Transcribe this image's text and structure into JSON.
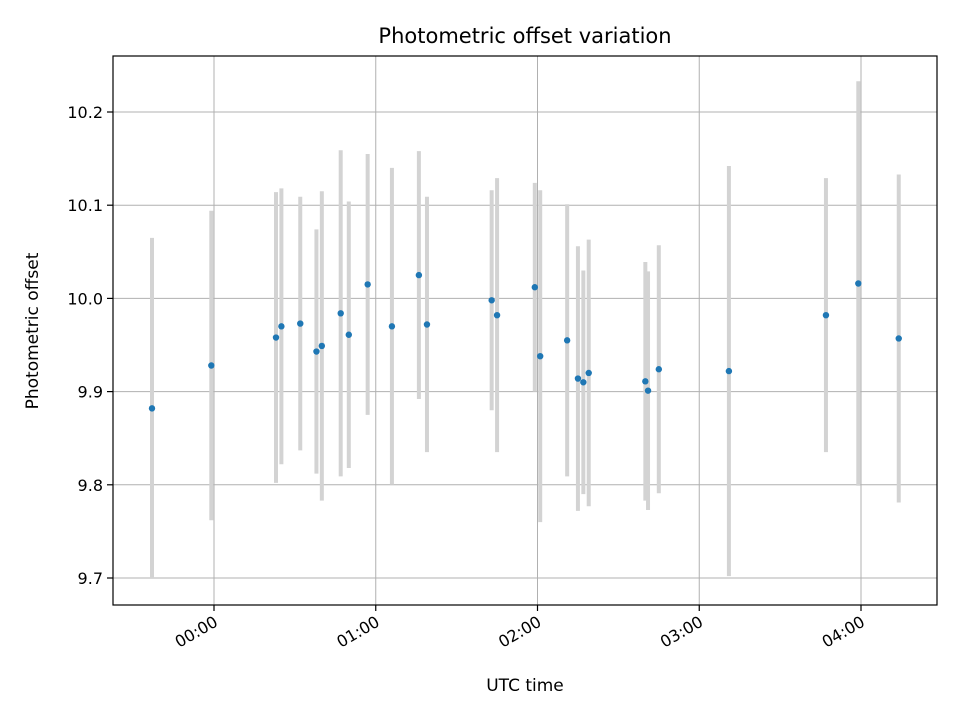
{
  "chart_data": {
    "type": "scatter",
    "title": "Photometric offset variation",
    "xlabel": "UTC time",
    "ylabel": "Photometric offset",
    "xlim": [
      "-00:23",
      "04:28"
    ],
    "ylim": [
      9.67,
      10.26
    ],
    "x_ticks": [
      "00:00",
      "01:00",
      "02:00",
      "03:00",
      "04:00"
    ],
    "y_ticks": [
      "9.7",
      "9.8",
      "9.9",
      "10.0",
      "10.1",
      "10.2"
    ],
    "grid": true,
    "marker_color": "#1f77b4",
    "errorbar_color": "#d3d3d3",
    "series": [
      {
        "points": [
          {
            "x": "-00:23",
            "y": 9.882,
            "yerr": 0.183
          },
          {
            "x": "-00:01",
            "y": 9.928,
            "yerr": 0.166
          },
          {
            "x": "00:23",
            "y": 9.958,
            "yerr": 0.156
          },
          {
            "x": "00:25",
            "y": 9.97,
            "yerr": 0.148
          },
          {
            "x": "00:32",
            "y": 9.973,
            "yerr": 0.136
          },
          {
            "x": "00:38",
            "y": 9.943,
            "yerr": 0.131
          },
          {
            "x": "00:40",
            "y": 9.949,
            "yerr": 0.166
          },
          {
            "x": "00:47",
            "y": 9.984,
            "yerr": 0.175
          },
          {
            "x": "00:50",
            "y": 9.961,
            "yerr": 0.143
          },
          {
            "x": "00:57",
            "y": 10.015,
            "yerr": 0.14
          },
          {
            "x": "01:06",
            "y": 9.97,
            "yerr": 0.17
          },
          {
            "x": "01:16",
            "y": 10.025,
            "yerr": 0.133
          },
          {
            "x": "01:19",
            "y": 9.972,
            "yerr": 0.137
          },
          {
            "x": "01:43",
            "y": 9.998,
            "yerr": 0.118
          },
          {
            "x": "01:45",
            "y": 9.982,
            "yerr": 0.147
          },
          {
            "x": "01:59",
            "y": 10.012,
            "yerr": 0.112
          },
          {
            "x": "02:01",
            "y": 9.938,
            "yerr": 0.178
          },
          {
            "x": "02:11",
            "y": 9.955,
            "yerr": 0.146
          },
          {
            "x": "02:15",
            "y": 9.914,
            "yerr": 0.142
          },
          {
            "x": "02:17",
            "y": 9.91,
            "yerr": 0.12
          },
          {
            "x": "02:19",
            "y": 9.92,
            "yerr": 0.143
          },
          {
            "x": "02:40",
            "y": 9.911,
            "yerr": 0.128
          },
          {
            "x": "02:41",
            "y": 9.901,
            "yerr": 0.128
          },
          {
            "x": "02:45",
            "y": 9.924,
            "yerr": 0.133
          },
          {
            "x": "03:11",
            "y": 9.922,
            "yerr": 0.22
          },
          {
            "x": "03:47",
            "y": 9.982,
            "yerr": 0.147
          },
          {
            "x": "03:59",
            "y": 10.016,
            "yerr": 0.217
          },
          {
            "x": "04:14",
            "y": 9.957,
            "yerr": 0.176
          }
        ]
      }
    ]
  }
}
